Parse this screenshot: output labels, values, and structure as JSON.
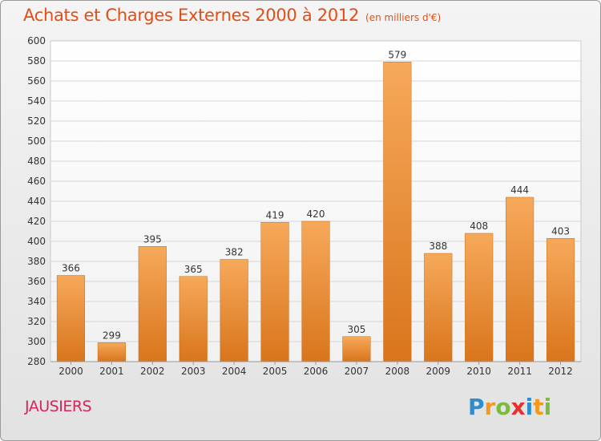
{
  "header": {
    "title": "Achats et Charges Externes 2000 à 2012",
    "subtitle": "(en milliers d'€)"
  },
  "footer": {
    "commune": "JAUSIERS",
    "logo_text": "Proxiti"
  },
  "colors": {
    "title": "#e24e16",
    "commune": "#d5255a",
    "bar_top": "#f6a95a",
    "bar_bottom": "#d9751c"
  },
  "chart_data": {
    "type": "bar",
    "title": "Achats et Charges Externes 2000 à 2012",
    "subtitle": "(en milliers d'€)",
    "categories": [
      "2000",
      "2001",
      "2002",
      "2003",
      "2004",
      "2005",
      "2006",
      "2007",
      "2008",
      "2009",
      "2010",
      "2011",
      "2012"
    ],
    "values": [
      366,
      299,
      395,
      365,
      382,
      419,
      420,
      305,
      579,
      388,
      408,
      444,
      403
    ],
    "ylim": [
      280,
      600
    ],
    "yticks": [
      280,
      300,
      320,
      340,
      360,
      380,
      400,
      420,
      440,
      460,
      480,
      500,
      520,
      540,
      560,
      580,
      600
    ],
    "grid": true,
    "legend": "none"
  }
}
